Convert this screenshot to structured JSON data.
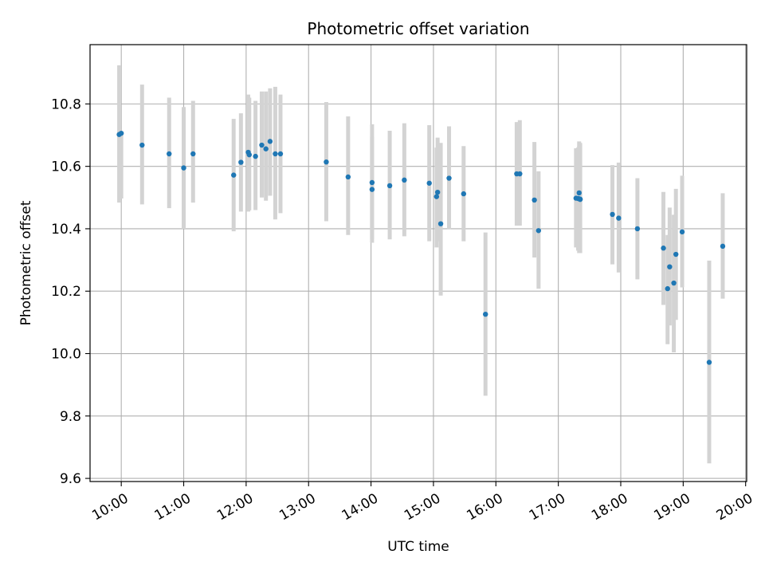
{
  "chart_data": {
    "type": "scatter",
    "title": "Photometric offset variation",
    "xlabel": "UTC time",
    "ylabel": "Photometric offset",
    "x_unit": "hours UTC",
    "xlim": [
      9.5,
      20.0167
    ],
    "ylim": [
      9.59,
      10.99
    ],
    "x_ticks": [
      "10:00",
      "11:00",
      "12:00",
      "13:00",
      "14:00",
      "15:00",
      "16:00",
      "17:00",
      "18:00",
      "19:00",
      "20:00"
    ],
    "y_ticks": [
      "9.6",
      "9.8",
      "10.0",
      "10.2",
      "10.4",
      "10.6",
      "10.8"
    ],
    "grid": true,
    "legend": "none",
    "colors": {
      "points": "#1f77b4",
      "errorbars": "#d3d3d3",
      "grid": "#b0b0b0"
    },
    "series": [
      {
        "x": [
          "09:58",
          "10:00",
          "10:20",
          "10:46",
          "11:00",
          "11:09",
          "11:48",
          "11:55",
          "12:02",
          "12:03",
          "12:09",
          "12:15",
          "12:19",
          "12:23",
          "12:28",
          "12:33",
          "13:17",
          "13:38",
          "14:01",
          "14:01",
          "14:18",
          "14:32",
          "14:56",
          "15:03",
          "15:04",
          "15:07",
          "15:15",
          "15:29",
          "15:50",
          "16:20",
          "16:23",
          "16:37",
          "16:41",
          "17:17",
          "17:19",
          "17:20",
          "17:20",
          "17:21",
          "17:21",
          "17:52",
          "17:58",
          "18:16",
          "18:41",
          "18:45",
          "18:47",
          "18:51",
          "18:53",
          "18:59",
          "19:25",
          "19:38"
        ],
        "y": [
          10.702,
          10.706,
          10.668,
          10.64,
          10.595,
          10.64,
          10.572,
          10.613,
          10.645,
          10.637,
          10.632,
          10.668,
          10.656,
          10.68,
          10.64,
          10.64,
          10.614,
          10.566,
          10.548,
          10.526,
          10.538,
          10.556,
          10.546,
          10.503,
          10.517,
          10.416,
          10.562,
          10.512,
          10.126,
          10.576,
          10.576,
          10.492,
          10.394,
          10.498,
          10.497,
          10.496,
          10.515,
          10.495,
          10.494,
          10.446,
          10.434,
          10.4,
          10.338,
          10.208,
          10.278,
          10.226,
          10.318,
          10.39,
          9.972,
          10.344
        ],
        "yerr_low": [
          10.484,
          10.497,
          10.478,
          10.466,
          10.4,
          10.484,
          10.392,
          10.455,
          10.455,
          10.459,
          10.46,
          10.5,
          10.49,
          10.506,
          10.43,
          10.45,
          10.424,
          10.38,
          10.355,
          10.366,
          10.366,
          10.376,
          10.36,
          10.34,
          10.36,
          10.186,
          10.398,
          10.36,
          9.865,
          10.41,
          10.41,
          10.308,
          10.208,
          10.34,
          10.33,
          10.322,
          10.33,
          10.322,
          10.322,
          10.286,
          10.26,
          10.238,
          10.156,
          10.03,
          10.09,
          10.004,
          10.108,
          10.212,
          9.648,
          10.176
        ],
        "yerr_high": [
          10.924,
          10.7,
          10.862,
          10.82,
          10.79,
          10.81,
          10.752,
          10.77,
          10.83,
          10.82,
          10.81,
          10.84,
          10.84,
          10.85,
          10.855,
          10.83,
          10.806,
          10.76,
          10.735,
          10.695,
          10.714,
          10.738,
          10.732,
          10.66,
          10.692,
          10.675,
          10.728,
          10.665,
          10.388,
          10.742,
          10.748,
          10.678,
          10.584,
          10.658,
          10.66,
          10.665,
          10.68,
          10.675,
          10.67,
          10.604,
          10.612,
          10.562,
          10.518,
          10.38,
          10.468,
          10.445,
          10.528,
          10.57,
          10.298,
          10.514
        ]
      }
    ]
  }
}
